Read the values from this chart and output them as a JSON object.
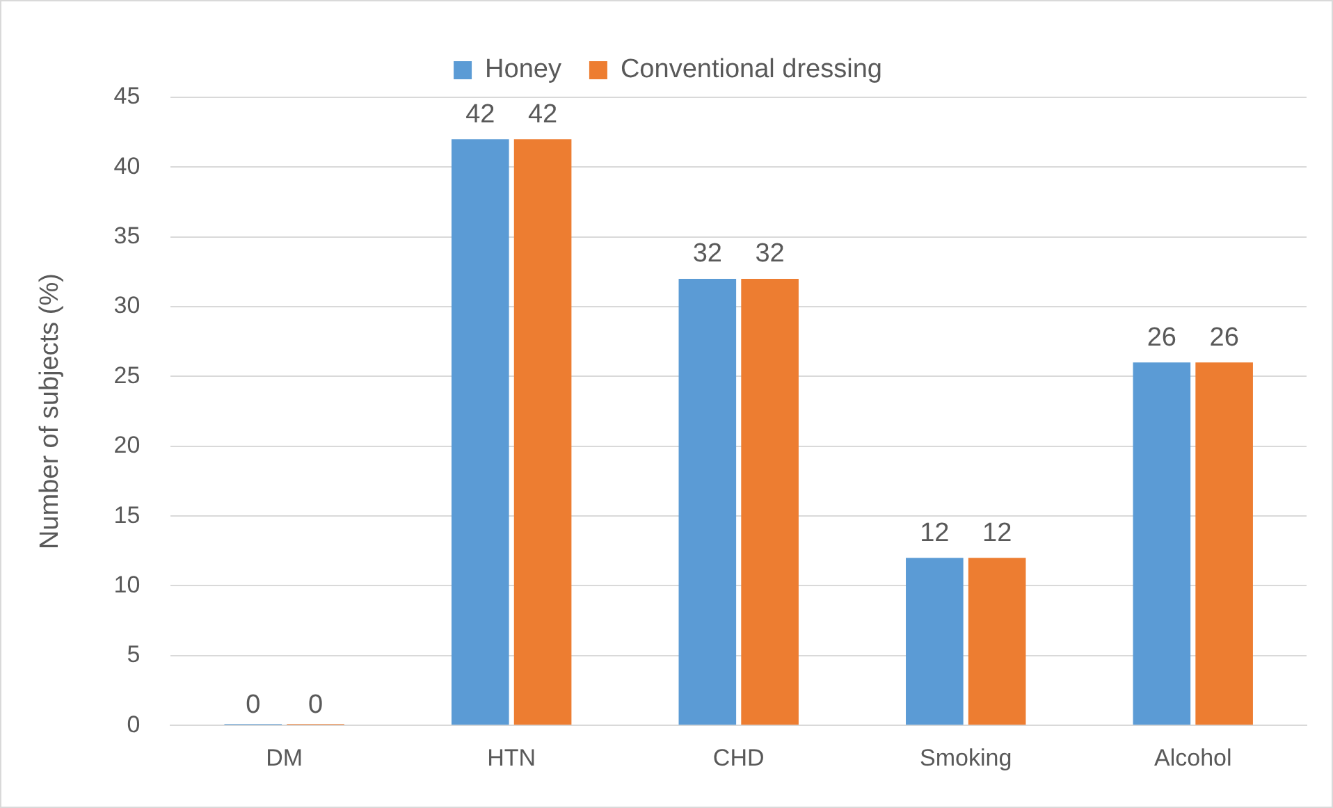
{
  "chart_data": {
    "type": "bar",
    "ylabel": "Number of subjects (%)",
    "categories": [
      "DM",
      "HTN",
      "CHD",
      "Smoking",
      "Alcohol"
    ],
    "series": [
      {
        "name": "Honey",
        "color": "#5b9bd5",
        "values": [
          0,
          42,
          32,
          12,
          26
        ]
      },
      {
        "name": "Conventional dressing",
        "color": "#ed7d31",
        "values": [
          0,
          42,
          32,
          12,
          26
        ]
      }
    ],
    "ylim": [
      0,
      45
    ],
    "yticks": [
      0,
      5,
      10,
      15,
      20,
      25,
      30,
      35,
      40,
      45
    ],
    "grid": "y",
    "legend": "top",
    "data_labels": true
  }
}
